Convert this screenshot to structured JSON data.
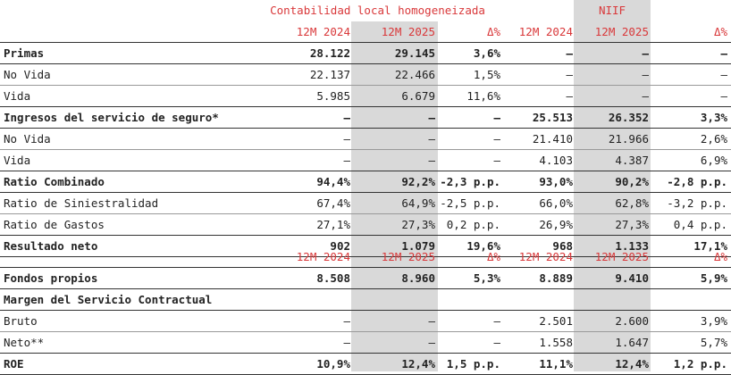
{
  "header_group": {
    "local": "Contabilidad local homogeneizada",
    "niif": "NIIF"
  },
  "period_headers": [
    "12M 2024",
    "12M 2025",
    "Δ%",
    "12M 2024",
    "12M 2025",
    "Δ%"
  ],
  "colors": {
    "accent": "#d9383a",
    "shade": "#d9d9d9"
  },
  "rows1": [
    {
      "label": "Primas",
      "bold": true,
      "v": [
        "28.122",
        "29.145",
        "3,6%",
        "–",
        "–",
        "–"
      ]
    },
    {
      "label": "No Vida",
      "bold": false,
      "v": [
        "22.137",
        "22.466",
        "1,5%",
        "–",
        "–",
        "–"
      ]
    },
    {
      "label": "Vida",
      "bold": false,
      "v": [
        "5.985",
        "6.679",
        "11,6%",
        "–",
        "–",
        "–"
      ]
    },
    {
      "label": "Ingresos del servicio de seguro*",
      "bold": true,
      "v": [
        "–",
        "–",
        "–",
        "25.513",
        "26.352",
        "3,3%"
      ]
    },
    {
      "label": "No Vida",
      "bold": false,
      "v": [
        "–",
        "–",
        "–",
        "21.410",
        "21.966",
        "2,6%"
      ]
    },
    {
      "label": "Vida",
      "bold": false,
      "v": [
        "–",
        "–",
        "–",
        "4.103",
        "4.387",
        "6,9%"
      ]
    },
    {
      "label": "Ratio Combinado",
      "bold": true,
      "v": [
        "94,4%",
        "92,2%",
        "-2,3 p.p.",
        "93,0%",
        "90,2%",
        "-2,8 p.p."
      ]
    },
    {
      "label": "Ratio de Siniestralidad",
      "bold": false,
      "v": [
        "67,4%",
        "64,9%",
        "-2,5 p.p.",
        "66,0%",
        "62,8%",
        "-3,2 p.p."
      ]
    },
    {
      "label": "Ratio de Gastos",
      "bold": false,
      "v": [
        "27,1%",
        "27,3%",
        "0,2 p.p.",
        "26,9%",
        "27,3%",
        "0,4 p.p."
      ]
    },
    {
      "label": "Resultado neto",
      "bold": true,
      "v": [
        "902",
        "1.079",
        "19,6%",
        "968",
        "1.133",
        "17,1%"
      ]
    }
  ],
  "rows2": [
    {
      "label": "Fondos propios",
      "bold": true,
      "v": [
        "8.508",
        "8.960",
        "5,3%",
        "8.889",
        "9.410",
        "5,9%"
      ]
    },
    {
      "label": "Margen del Servicio Contractual",
      "bold": true,
      "v": [
        "",
        "",
        "",
        "",
        "",
        ""
      ]
    },
    {
      "label": "Bruto",
      "bold": false,
      "v": [
        "–",
        "–",
        "–",
        "2.501",
        "2.600",
        "3,9%"
      ]
    },
    {
      "label": "Neto**",
      "bold": false,
      "v": [
        "–",
        "–",
        "–",
        "1.558",
        "1.647",
        "5,7%"
      ]
    },
    {
      "label": "ROE",
      "bold": true,
      "v": [
        "10,9%",
        "12,4%",
        "1,5 p.p.",
        "11,1%",
        "12,4%",
        "1,2 p.p."
      ]
    }
  ]
}
